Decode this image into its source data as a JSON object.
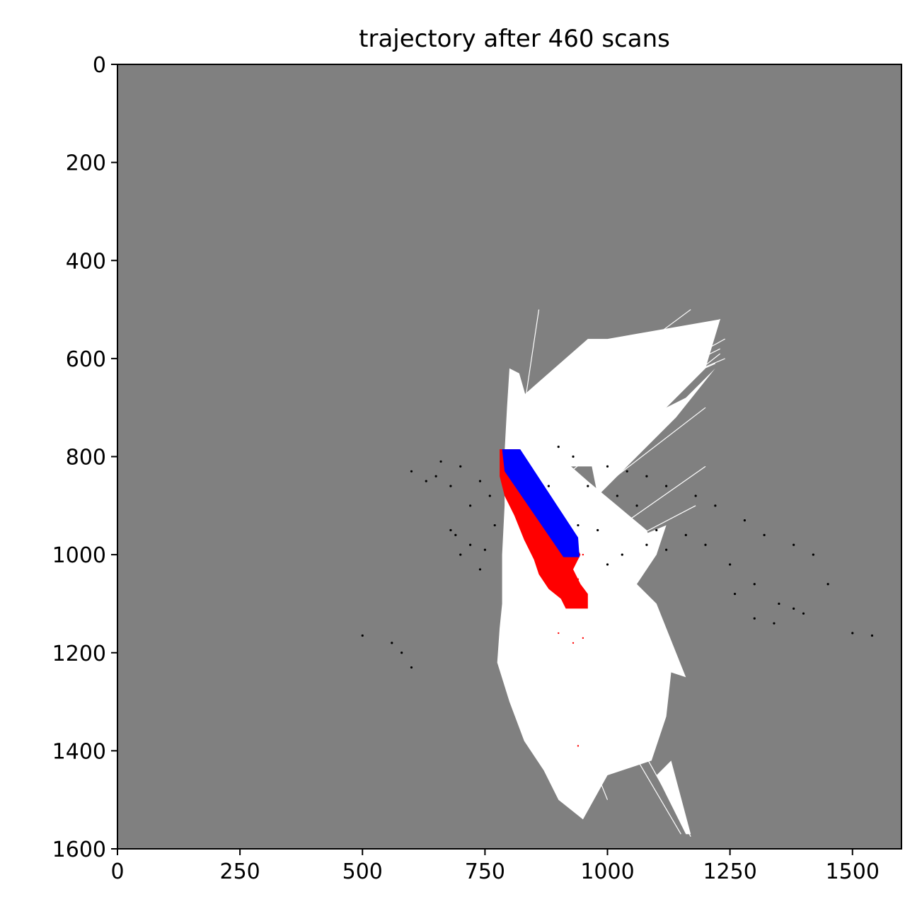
{
  "chart_data": {
    "type": "heatmap",
    "title": "trajectory after 460 scans",
    "xlabel": "",
    "ylabel": "",
    "xlim": [
      0,
      1600
    ],
    "ylim": [
      1600,
      0
    ],
    "y_axis_inverted": true,
    "grid": false,
    "x_ticks": [
      0,
      250,
      500,
      750,
      1000,
      1250,
      1500
    ],
    "y_ticks": [
      0,
      200,
      400,
      600,
      800,
      1000,
      1200,
      1400,
      1600
    ],
    "colors": {
      "unknown": "#808080",
      "free": "#ffffff",
      "occupied": "#000000",
      "trajectory_estimated": "#ff0000",
      "trajectory_reference": "#0000ff"
    },
    "series": [
      {
        "kind": "free",
        "polygons": [
          [
            [
              800,
              620
            ],
            [
              820,
              630
            ],
            [
              840,
              700
            ],
            [
              880,
              780
            ],
            [
              960,
              850
            ],
            [
              1020,
              900
            ],
            [
              1080,
              950
            ],
            [
              1100,
              1000
            ],
            [
              1060,
              1060
            ],
            [
              1100,
              1100
            ],
            [
              1160,
              1250
            ],
            [
              1130,
              1240
            ],
            [
              1120,
              1330
            ],
            [
              1090,
              1420
            ],
            [
              1000,
              1450
            ],
            [
              950,
              1540
            ],
            [
              900,
              1500
            ],
            [
              870,
              1440
            ],
            [
              830,
              1380
            ],
            [
              800,
              1300
            ],
            [
              775,
              1220
            ],
            [
              780,
              1150
            ],
            [
              785,
              1100
            ],
            [
              785,
              1000
            ],
            [
              790,
              900
            ],
            [
              790,
              790
            ],
            [
              795,
              700
            ]
          ],
          [
            [
              800,
              700
            ],
            [
              960,
              560
            ],
            [
              1000,
              560
            ],
            [
              1230,
              520
            ],
            [
              1200,
              620
            ],
            [
              1120,
              700
            ],
            [
              1040,
              760
            ],
            [
              980,
              820
            ],
            [
              900,
              820
            ]
          ],
          [
            [
              960,
              780
            ],
            [
              1160,
              680
            ],
            [
              1220,
              620
            ],
            [
              1140,
              720
            ],
            [
              1060,
              800
            ],
            [
              980,
              880
            ]
          ],
          [
            [
              1000,
              990
            ],
            [
              1120,
              940
            ],
            [
              1100,
              1000
            ],
            [
              1040,
              1050
            ]
          ],
          [
            [
              1130,
              1420
            ],
            [
              1170,
              1570
            ],
            [
              1160,
              1570
            ],
            [
              1100,
              1450
            ]
          ]
        ],
        "rays": [
          [
            [
              820,
              800
            ],
            [
              1230,
              520
            ]
          ],
          [
            [
              830,
              790
            ],
            [
              1210,
              540
            ]
          ],
          [
            [
              840,
              780
            ],
            [
              1240,
              560
            ]
          ],
          [
            [
              850,
              770
            ],
            [
              1230,
              580
            ]
          ],
          [
            [
              860,
              760
            ],
            [
              1240,
              600
            ]
          ],
          [
            [
              880,
              760
            ],
            [
              1220,
              610
            ]
          ],
          [
            [
              820,
              760
            ],
            [
              1170,
              500
            ]
          ],
          [
            [
              900,
              850
            ],
            [
              1230,
              590
            ]
          ],
          [
            [
              940,
              900
            ],
            [
              1200,
              700
            ]
          ],
          [
            [
              1000,
              960
            ],
            [
              1200,
              820
            ]
          ],
          [
            [
              950,
              1020
            ],
            [
              1180,
              900
            ]
          ],
          [
            [
              830,
              700
            ],
            [
              860,
              500
            ]
          ],
          [
            [
              960,
              1200
            ],
            [
              1170,
              1575
            ]
          ],
          [
            [
              950,
              1230
            ],
            [
              1150,
              1570
            ]
          ],
          [
            [
              920,
              1300
            ],
            [
              1000,
              1500
            ]
          ]
        ]
      },
      {
        "kind": "occupied",
        "scatter": [
          [
            [
              600,
              830
            ],
            [
              660,
              810
            ],
            [
              700,
              820
            ],
            [
              740,
              850
            ],
            [
              760,
              880
            ],
            [
              720,
              900
            ],
            [
              680,
              860
            ],
            [
              650,
              840
            ],
            [
              630,
              850
            ],
            [
              770,
              940
            ],
            [
              750,
              990
            ],
            [
              700,
              1000
            ],
            [
              680,
              950
            ],
            [
              720,
              980
            ],
            [
              740,
              1030
            ],
            [
              690,
              960
            ]
          ],
          [
            [
              960,
              860
            ],
            [
              1020,
              880
            ],
            [
              1060,
              900
            ],
            [
              1100,
              950
            ],
            [
              1160,
              960
            ],
            [
              1200,
              980
            ],
            [
              1250,
              1020
            ],
            [
              1300,
              1060
            ],
            [
              1350,
              1100
            ],
            [
              1400,
              1120
            ],
            [
              1450,
              1060
            ],
            [
              1420,
              1000
            ],
            [
              1380,
              980
            ],
            [
              1320,
              960
            ],
            [
              1280,
              930
            ],
            [
              1220,
              900
            ],
            [
              1180,
              880
            ],
            [
              1120,
              860
            ],
            [
              1080,
              840
            ],
            [
              1040,
              830
            ],
            [
              1000,
              820
            ],
            [
              1260,
              1080
            ],
            [
              1300,
              1130
            ],
            [
              1340,
              1140
            ],
            [
              1380,
              1110
            ]
          ],
          [
            [
              1030,
              1000
            ],
            [
              1080,
              980
            ],
            [
              1120,
              990
            ],
            [
              1000,
              1020
            ],
            [
              980,
              950
            ],
            [
              940,
              940
            ],
            [
              900,
              950
            ]
          ],
          [
            [
              500,
              1165
            ],
            [
              560,
              1180
            ],
            [
              580,
              1200
            ],
            [
              600,
              1230
            ],
            [
              1500,
              1160
            ],
            [
              1540,
              1165
            ]
          ],
          [
            [
              930,
              800
            ],
            [
              900,
              780
            ],
            [
              880,
              860
            ],
            [
              860,
              900
            ]
          ]
        ]
      },
      {
        "kind": "trajectory_estimated",
        "polygon": [
          [
            780,
            785
          ],
          [
            820,
            785
          ],
          [
            830,
            820
          ],
          [
            870,
            880
          ],
          [
            920,
            950
          ],
          [
            945,
            1000
          ],
          [
            930,
            1030
          ],
          [
            945,
            1060
          ],
          [
            960,
            1080
          ],
          [
            960,
            1110
          ],
          [
            915,
            1110
          ],
          [
            905,
            1090
          ],
          [
            880,
            1070
          ],
          [
            860,
            1040
          ],
          [
            850,
            1010
          ],
          [
            830,
            970
          ],
          [
            810,
            920
          ],
          [
            790,
            880
          ],
          [
            780,
            840
          ]
        ],
        "specks": [
          [
            940,
            1050
          ],
          [
            900,
            1160
          ],
          [
            930,
            1180
          ],
          [
            950,
            1170
          ],
          [
            940,
            1390
          ],
          [
            950,
            1000
          ]
        ]
      },
      {
        "kind": "trajectory_reference",
        "polygon": [
          [
            785,
            785
          ],
          [
            822,
            785
          ],
          [
            940,
            965
          ],
          [
            943,
            1005
          ],
          [
            910,
            1005
          ],
          [
            790,
            830
          ]
        ]
      }
    ]
  }
}
